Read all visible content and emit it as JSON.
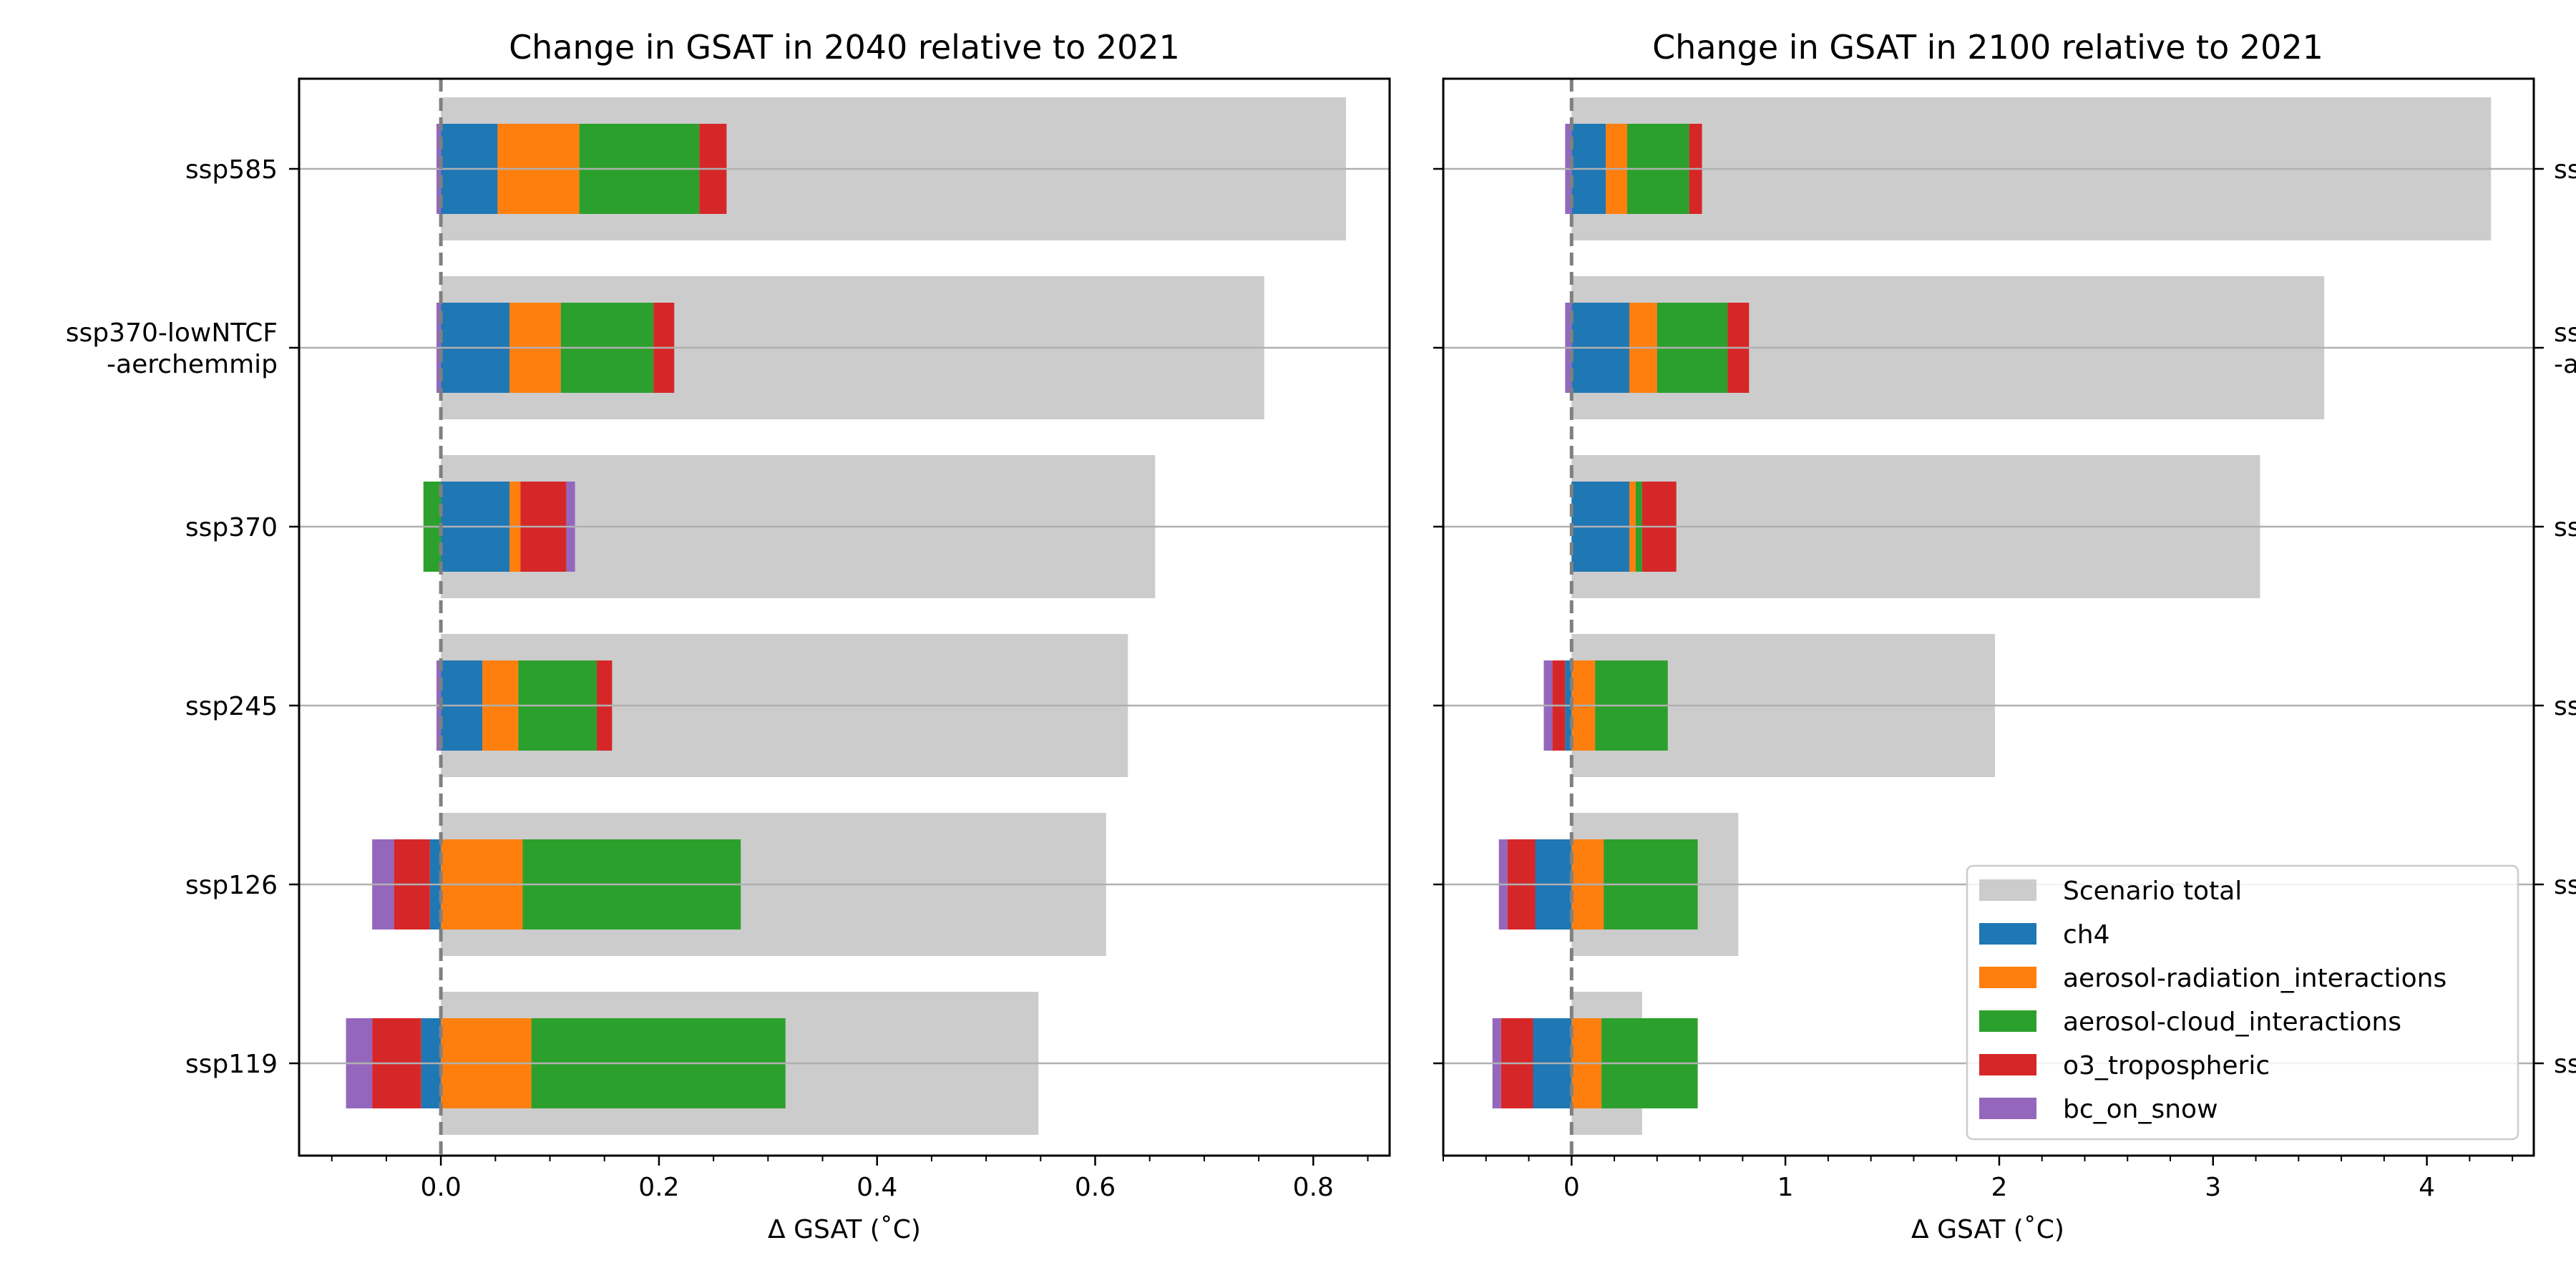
{
  "chart_data": [
    {
      "type": "bar",
      "orientation": "horizontal",
      "stacked": true,
      "title": "Change in GSAT in 2040 relative to 2021",
      "xlabel": "Δ GSAT (˚C)",
      "ylabel": "",
      "xlim": [
        -0.13,
        0.87
      ],
      "xticks": [
        0.0,
        0.2,
        0.4,
        0.6,
        0.8
      ],
      "xtick_labels": [
        "0.0",
        "0.2",
        "0.4",
        "0.6",
        "0.8"
      ],
      "minor_tick_step": 0.05,
      "zero_reference_line": true,
      "categories": [
        "ssp585",
        "ssp370-lowNTCF\n-aerchemmip",
        "ssp370",
        "ssp245",
        "ssp126",
        "ssp119"
      ],
      "scenario_total": [
        0.83,
        0.755,
        0.655,
        0.63,
        0.61,
        0.548
      ],
      "series": [
        {
          "name": "ch4",
          "values": [
            0.052,
            0.063,
            0.063,
            0.038,
            -0.01,
            -0.018
          ]
        },
        {
          "name": "aerosol-radiation_interactions",
          "values": [
            0.075,
            0.047,
            0.01,
            0.033,
            0.075,
            0.083
          ]
        },
        {
          "name": "aerosol-cloud_interactions",
          "values": [
            0.11,
            0.085,
            -0.016,
            0.072,
            0.2,
            0.233
          ]
        },
        {
          "name": "o3_tropospheric",
          "values": [
            0.025,
            0.019,
            0.042,
            0.014,
            -0.033,
            -0.045
          ]
        },
        {
          "name": "bc_on_snow",
          "values": [
            -0.004,
            -0.004,
            0.008,
            -0.004,
            -0.02,
            -0.024
          ]
        }
      ]
    },
    {
      "type": "bar",
      "orientation": "horizontal",
      "stacked": true,
      "title": "Change in GSAT in 2100 relative to 2021",
      "xlabel": "Δ GSAT (˚C)",
      "ylabel": "",
      "xlim": [
        -0.6,
        4.5
      ],
      "xticks": [
        0,
        1,
        2,
        3,
        4
      ],
      "xtick_labels": [
        "0",
        "1",
        "2",
        "3",
        "4"
      ],
      "minor_tick_step": 0.2,
      "zero_reference_line": true,
      "categories": [
        "ssp585",
        "ssp370-lowNTCF\n-aerchemmip",
        "ssp370",
        "ssp245",
        "ssp126",
        "ssp119"
      ],
      "category_labels_visible": [
        "ss",
        "ss\n-a",
        "ss",
        "ss",
        "ss",
        "ss"
      ],
      "scenario_total": [
        4.3,
        3.52,
        3.22,
        1.98,
        0.78,
        0.33
      ],
      "series": [
        {
          "name": "ch4",
          "values": [
            0.16,
            0.27,
            0.27,
            -0.03,
            -0.17,
            -0.18
          ]
        },
        {
          "name": "aerosol-radiation_interactions",
          "values": [
            0.1,
            0.13,
            0.03,
            0.11,
            0.15,
            0.14
          ]
        },
        {
          "name": "aerosol-cloud_interactions",
          "values": [
            0.29,
            0.33,
            0.03,
            0.34,
            0.44,
            0.45
          ]
        },
        {
          "name": "o3_tropospheric",
          "values": [
            0.06,
            0.1,
            0.16,
            -0.06,
            -0.13,
            -0.15
          ]
        },
        {
          "name": "bc_on_snow",
          "values": [
            -0.03,
            -0.03,
            0.0,
            -0.04,
            -0.04,
            -0.04
          ]
        }
      ],
      "legend": {
        "position": "lower-right",
        "entries": [
          "Scenario total",
          "ch4",
          "aerosol-radiation_interactions",
          "aerosol-cloud_interactions",
          "o3_tropospheric",
          "bc_on_snow"
        ]
      }
    }
  ],
  "colors": {
    "Scenario total": "#cccccc",
    "ch4": "#1f77b4",
    "aerosol-radiation_interactions": "#ff7f0e",
    "aerosol-cloud_interactions": "#2ca02c",
    "o3_tropospheric": "#d62728",
    "bc_on_snow": "#9467bd",
    "gridline": "#b0b0b0",
    "zero_line": "#808080"
  }
}
